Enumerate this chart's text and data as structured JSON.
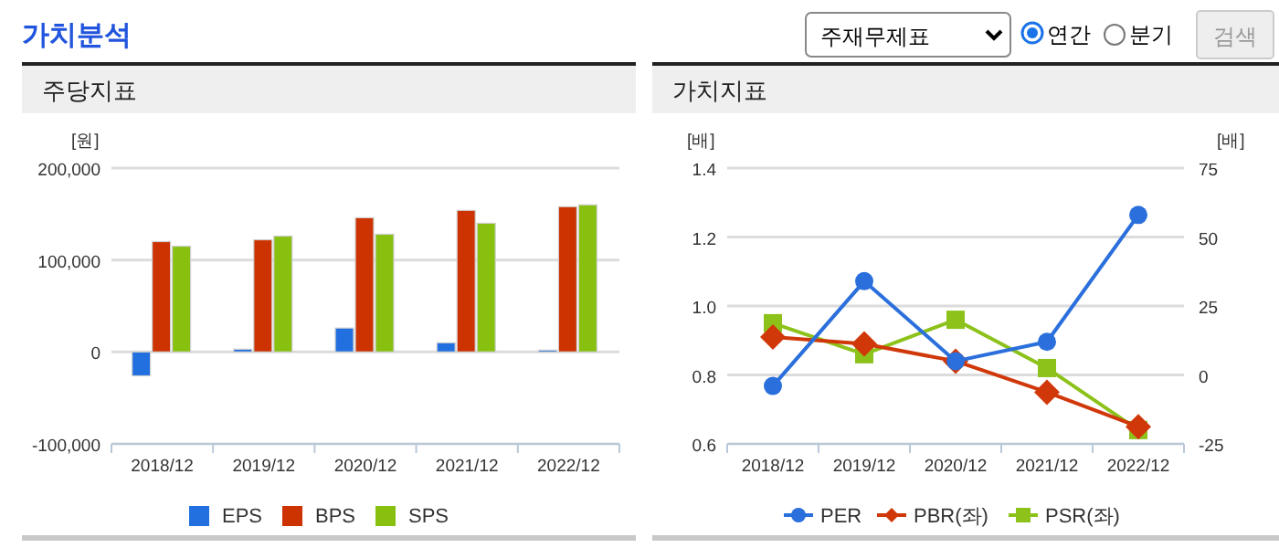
{
  "chart_data": [
    {
      "type": "other",
      "title": "가치분석",
      "annotations": [
        "주재무제표",
        "연간",
        "분기",
        "검색"
      ]
    },
    {
      "type": "bar",
      "title": "주당지표",
      "ylabel": "[원]",
      "categories": [
        "2018/12",
        "2019/12",
        "2020/12",
        "2021/12",
        "2022/12"
      ],
      "series": [
        {
          "name": "EPS",
          "color": "#2270e0",
          "values": [
            -26000,
            3000,
            26000,
            10000,
            2000
          ]
        },
        {
          "name": "BPS",
          "color": "#cc3300",
          "values": [
            120000,
            122000,
            146000,
            154000,
            158000
          ]
        },
        {
          "name": "SPS",
          "color": "#88c010",
          "values": [
            115000,
            126000,
            128000,
            140000,
            160000
          ]
        }
      ],
      "ylim": [
        -100000,
        200000
      ],
      "yticks": [
        {
          "value": -100000,
          "label": "-100,000"
        },
        0,
        {
          "value": 100000,
          "label": "100,000"
        },
        {
          "value": 200000,
          "label": "200,000"
        }
      ],
      "grid": "y",
      "legend": "bottom"
    },
    {
      "type": "line",
      "title": "가치지표",
      "ylabel": "[배]",
      "y2label": "[배]",
      "categories": [
        "2018/12",
        "2019/12",
        "2020/12",
        "2021/12",
        "2022/12"
      ],
      "series": [
        {
          "name": "PER",
          "color": "#2a6fdc",
          "axis": "y2",
          "marker": "circle",
          "values": [
            -4,
            34,
            5,
            12,
            58
          ]
        },
        {
          "name": "PBR(좌)",
          "color": "#d0380a",
          "marker": "diamond",
          "values": [
            0.91,
            0.89,
            0.84,
            0.75,
            0.65
          ]
        },
        {
          "name": "PSR(좌)",
          "color": "#8cc21a",
          "marker": "square",
          "values": [
            0.95,
            0.86,
            0.96,
            0.82,
            0.64
          ]
        }
      ],
      "ylim": [
        0.6,
        1.4
      ],
      "yticks": [
        0.6,
        0.8,
        {
          "value": 1.0,
          "label": "1.0"
        },
        1.2,
        1.4
      ],
      "y2lim": [
        -25,
        75
      ],
      "y2ticks": [
        -25,
        0,
        25,
        50,
        75
      ],
      "grid": "y",
      "legend": "bottom"
    }
  ]
}
